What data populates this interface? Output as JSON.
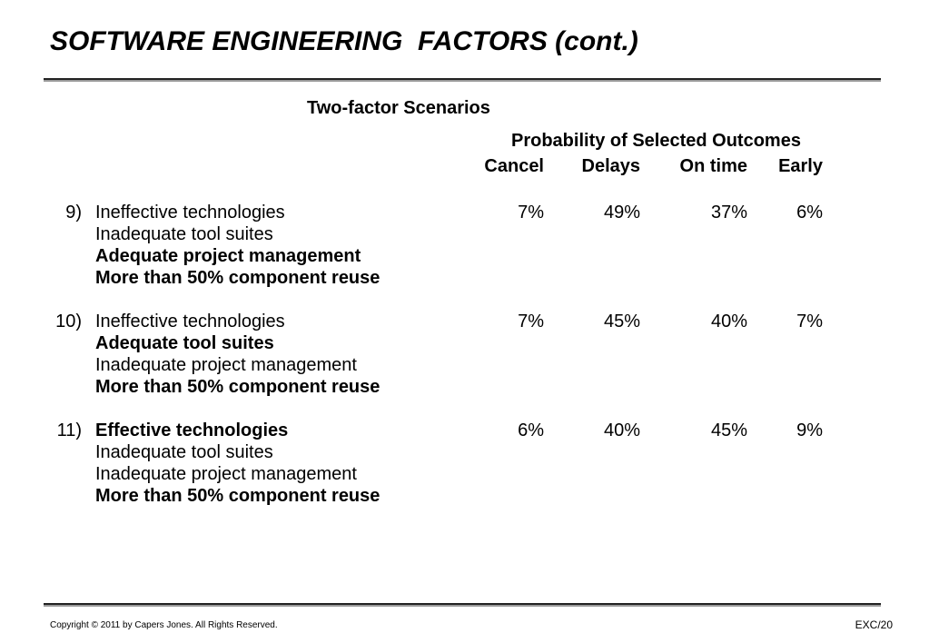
{
  "title": "SOFTWARE ENGINEERING  FACTORS (cont.)",
  "subtitle": "Two-factor Scenarios",
  "table": {
    "group_header": "Probability of Selected Outcomes",
    "columns": [
      "Cancel",
      "Delays",
      "On time",
      "Early"
    ],
    "scenarios": [
      {
        "number": "9)",
        "factors": [
          {
            "text": "Ineffective technologies",
            "bold": false
          },
          {
            "text": "Inadequate tool suites",
            "bold": false
          },
          {
            "text": "Adequate project management",
            "bold": true
          },
          {
            "text": "More than 50% component reuse",
            "bold": true
          }
        ],
        "values": [
          "7%",
          "49%",
          "37%",
          "6%"
        ]
      },
      {
        "number": "10)",
        "factors": [
          {
            "text": "Ineffective technologies",
            "bold": false
          },
          {
            "text": "Adequate tool suites",
            "bold": true
          },
          {
            "text": "Inadequate project management",
            "bold": false
          },
          {
            "text": "More than 50% component reuse",
            "bold": true
          }
        ],
        "values": [
          "7%",
          "45%",
          "40%",
          "7%"
        ]
      },
      {
        "number": "11)",
        "factors": [
          {
            "text": "Effective technologies",
            "bold": true
          },
          {
            "text": "Inadequate tool suites",
            "bold": false
          },
          {
            "text": "Inadequate project management",
            "bold": false
          },
          {
            "text": "More than 50% component reuse",
            "bold": true
          }
        ],
        "values": [
          "6%",
          "40%",
          "45%",
          "9%"
        ]
      }
    ]
  },
  "footer": {
    "copyright": "Copyright © 2011 by Capers Jones.  All Rights Reserved.",
    "slide_id": "EXC/20"
  }
}
